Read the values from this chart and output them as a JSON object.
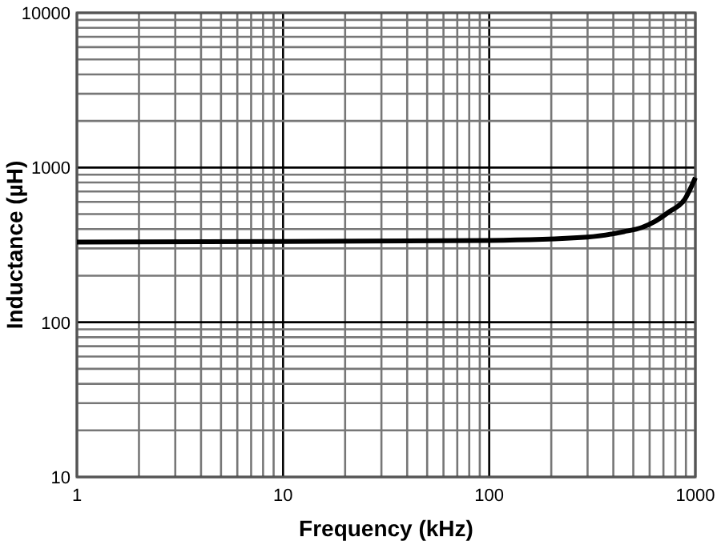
{
  "chart_data": {
    "type": "line",
    "xlabel": "Frequency (kHz)",
    "ylabel": "Inductance (µH)",
    "log": "xy",
    "grid": true,
    "marker": "none",
    "line_style": "solid",
    "xlim": [
      1,
      1000
    ],
    "ylim": [
      10,
      10000
    ],
    "xticks": [
      1,
      {
        "value": 2,
        "label": null
      },
      {
        "value": 3,
        "label": null
      },
      {
        "value": 4,
        "label": null
      },
      {
        "value": 5,
        "label": null
      },
      {
        "value": 6,
        "label": null
      },
      {
        "value": 7,
        "label": null
      },
      {
        "value": 8,
        "label": null
      },
      {
        "value": 9,
        "label": null
      },
      10,
      {
        "value": 20,
        "label": null
      },
      {
        "value": 30,
        "label": null
      },
      {
        "value": 40,
        "label": null
      },
      {
        "value": 50,
        "label": null
      },
      {
        "value": 60,
        "label": null
      },
      {
        "value": 70,
        "label": null
      },
      {
        "value": 80,
        "label": null
      },
      {
        "value": 90,
        "label": null
      },
      100,
      {
        "value": 200,
        "label": null
      },
      {
        "value": 300,
        "label": null
      },
      {
        "value": 400,
        "label": null
      },
      {
        "value": 500,
        "label": null
      },
      {
        "value": 600,
        "label": null
      },
      {
        "value": 700,
        "label": null
      },
      {
        "value": 800,
        "label": null
      },
      {
        "value": 900,
        "label": null
      },
      1000
    ],
    "yticks": [
      10,
      {
        "value": 20,
        "label": null
      },
      {
        "value": 30,
        "label": null
      },
      {
        "value": 40,
        "label": null
      },
      {
        "value": 50,
        "label": null
      },
      {
        "value": 60,
        "label": null
      },
      {
        "value": 70,
        "label": null
      },
      {
        "value": 80,
        "label": null
      },
      {
        "value": 90,
        "label": null
      },
      100,
      {
        "value": 200,
        "label": null
      },
      {
        "value": 300,
        "label": null
      },
      {
        "value": 400,
        "label": null
      },
      {
        "value": 500,
        "label": null
      },
      {
        "value": 600,
        "label": null
      },
      {
        "value": 700,
        "label": null
      },
      {
        "value": 800,
        "label": null
      },
      {
        "value": 900,
        "label": null
      },
      1000,
      {
        "value": 2000,
        "label": null
      },
      {
        "value": 3000,
        "label": null
      },
      {
        "value": 4000,
        "label": null
      },
      {
        "value": 5000,
        "label": null
      },
      {
        "value": 6000,
        "label": null
      },
      {
        "value": 7000,
        "label": null
      },
      {
        "value": 8000,
        "label": null
      },
      {
        "value": 9000,
        "label": null
      },
      10000
    ],
    "series": [
      {
        "color": "#000000",
        "x": [
          1,
          10,
          100,
          300,
          450,
          550,
          630,
          750,
          886,
          1000
        ],
        "values": [
          330,
          333,
          338,
          355,
          385,
          410,
          445,
          520,
          620,
          860
        ]
      }
    ]
  }
}
